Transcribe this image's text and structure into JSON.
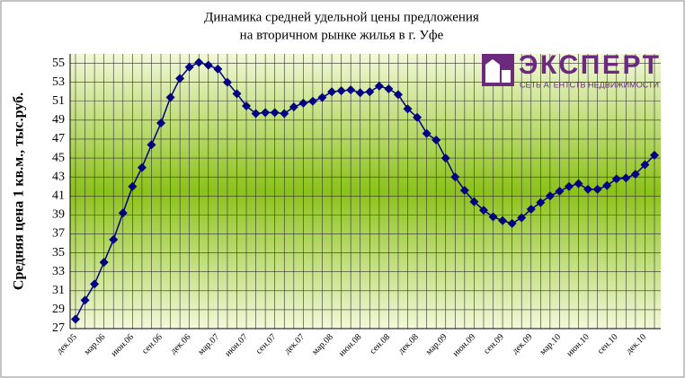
{
  "chart_data": {
    "type": "line",
    "title": "Динамика средней удельной цены предложения",
    "subtitle": "на вторичном рынке жилья в г. Уфе",
    "y_label": "Средняя цена 1 кв.м., тыс.руб.",
    "categories": [
      "дек.05",
      null,
      null,
      "мар.06",
      null,
      null,
      "июн.06",
      null,
      null,
      "сен.06",
      null,
      null,
      "дек.06",
      null,
      null,
      "мар.07",
      null,
      null,
      "июн.07",
      null,
      null,
      "сен.07",
      null,
      null,
      "дек.07",
      null,
      null,
      "мар.08",
      null,
      null,
      "июн.08",
      null,
      null,
      "сен.08",
      null,
      null,
      "дек.08",
      null,
      null,
      "мар.09",
      null,
      null,
      "июн.09",
      null,
      null,
      "сен.09",
      null,
      null,
      "дек.09",
      null,
      null,
      "мар.10",
      null,
      null,
      "июн.10",
      null,
      null,
      "сен.10",
      null,
      null,
      "дек.10",
      null
    ],
    "values": [
      28,
      30,
      31.7,
      34,
      36.4,
      39.2,
      42,
      44,
      46.4,
      48.7,
      51.4,
      53.4,
      54.6,
      55.1,
      54.8,
      54.4,
      53,
      51.8,
      50.5,
      49.7,
      49.8,
      49.8,
      49.7,
      50.4,
      50.8,
      51,
      51.4,
      52,
      52.1,
      52.2,
      51.9,
      52,
      52.6,
      52.3,
      51.7,
      50.2,
      49.3,
      47.6,
      46.9,
      45,
      43,
      41.6,
      40.4,
      39.5,
      38.8,
      38.4,
      38.1,
      38.7,
      39.6,
      40.3,
      41,
      41.5,
      42,
      42.3,
      41.7,
      41.7,
      42.1,
      42.8,
      42.9,
      43.3,
      44.3,
      45.3
    ],
    "color": "#000080",
    "ylim": [
      27,
      56
    ],
    "yticks": [
      27,
      29,
      31,
      33,
      35,
      37,
      39,
      41,
      43,
      45,
      47,
      49,
      51,
      53,
      55
    ],
    "grid": true
  },
  "logo": {
    "name": "ЭКСПЕРТ",
    "tagline": "СЕТЬ АГЕНТСТВ НЕДВИЖИМОСТИ"
  }
}
